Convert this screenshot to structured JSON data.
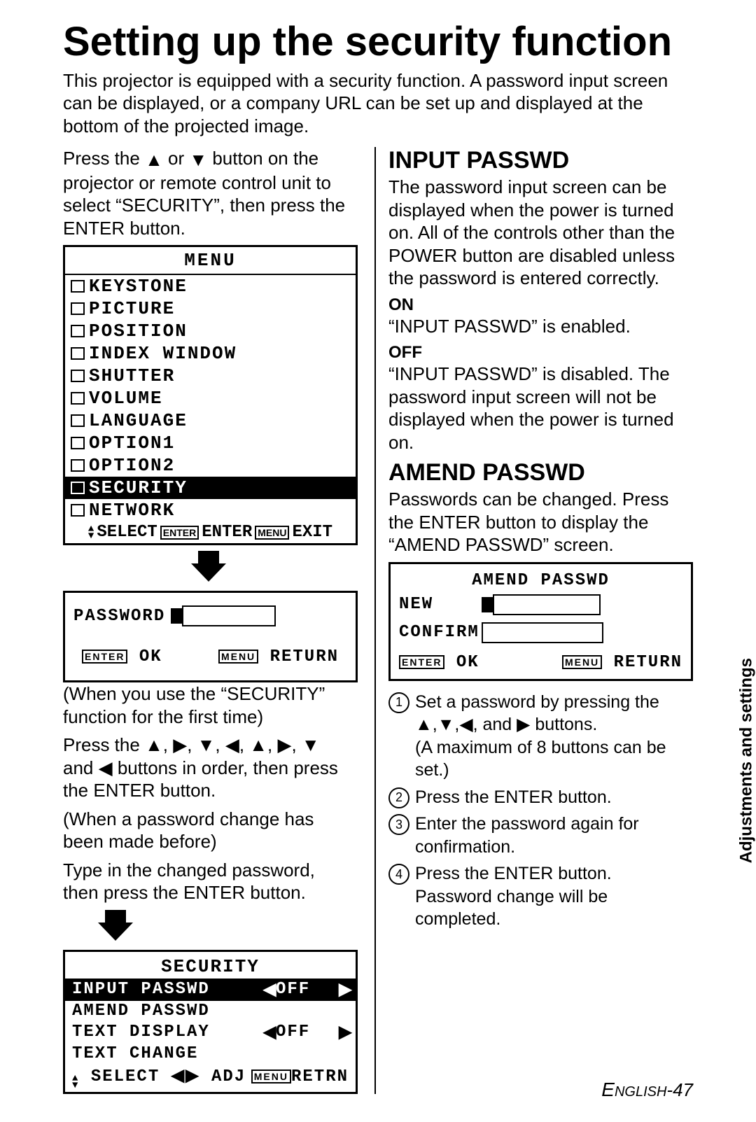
{
  "title": "Setting up the security function",
  "intro": "This projector is equipped with a security function. A password input screen can be displayed, or a company URL can be set up and displayed at the bottom of the projected image.",
  "left": {
    "instruction_pre": "Press the ",
    "instruction_mid": " or ",
    "instruction_post": " button on the projector or remote control unit to select “SECURITY”, then press the ENTER button.",
    "menu": {
      "title": "MENU",
      "items": [
        "KEYSTONE",
        "PICTURE",
        "POSITION",
        "INDEX WINDOW",
        "SHUTTER",
        "VOLUME",
        "LANGUAGE",
        "OPTION1",
        "OPTION2",
        "SECURITY",
        "NETWORK"
      ],
      "selected": "SECURITY",
      "footer_select": "SELECT",
      "footer_enter_key": "ENTER",
      "footer_enter": "ENTER",
      "footer_menu_key": "MENU",
      "footer_exit": "EXIT"
    },
    "password_box": {
      "label": "PASSWORD",
      "ok_key": "ENTER",
      "ok": "OK",
      "return_key": "MENU",
      "return": "RETURN"
    },
    "note1_line1": "(When you use the “SECURITY” function for the first time)",
    "note1_line2_pre": "Press the ",
    "note1_line2_post": " buttons in order, then press the ENTER button.",
    "note1_seq_join": " and ",
    "note2_line1": "(When a password change has been made before)",
    "note2_line2": "Type in the changed password, then press the ENTER button.",
    "security_box": {
      "title": "SECURITY",
      "rows": [
        {
          "label": "INPUT PASSWD",
          "val": "OFF",
          "sel": true,
          "arrows": true
        },
        {
          "label": "AMEND PASSWD",
          "val": "",
          "sel": false,
          "arrows": false
        },
        {
          "label": "TEXT DISPLAY",
          "val": "OFF",
          "sel": false,
          "arrows": true
        },
        {
          "label": "TEXT CHANGE",
          "val": "",
          "sel": false,
          "arrows": false
        }
      ],
      "footer_select": "SELECT",
      "footer_adj": "ADJ",
      "footer_menu_key": "MENU",
      "footer_return": "RETRN"
    }
  },
  "right": {
    "h_input": "INPUT PASSWD",
    "input_desc": "The password input screen can be displayed when the power is turned on. All of the controls other than the POWER button are disabled unless the password is entered correctly.",
    "on": "ON",
    "on_desc": "“INPUT PASSWD” is enabled.",
    "off": "OFF",
    "off_desc": "“INPUT PASSWD” is disabled. The password input screen will not be displayed when the power is turned on.",
    "h_amend": "AMEND PASSWD",
    "amend_desc": "Passwords can be changed. Press the ENTER button to display the “AMEND PASSWD” screen.",
    "amend_box": {
      "title": "AMEND PASSWD",
      "new": "NEW",
      "confirm": "CONFIRM",
      "ok_key": "ENTER",
      "ok": "OK",
      "return_key": "MENU",
      "return": "RETURN"
    },
    "steps": [
      "Set a password by pressing the ▲,▼,◀, and ▶ buttons.\n(A maximum of 8 buttons can be set.)",
      "Press the ENTER button.",
      "Enter the password again for confirmation.",
      "Press the ENTER button. Password change will be completed."
    ]
  },
  "side_tab": "Adjustments and settings",
  "page_num_prefix": "E",
  "page_num_rest": "NGLISH",
  "page_num_suffix": "-47",
  "colors": {
    "text": "#000000",
    "bg": "#ffffff",
    "inv_bg": "#000000",
    "inv_text": "#ffffff"
  }
}
